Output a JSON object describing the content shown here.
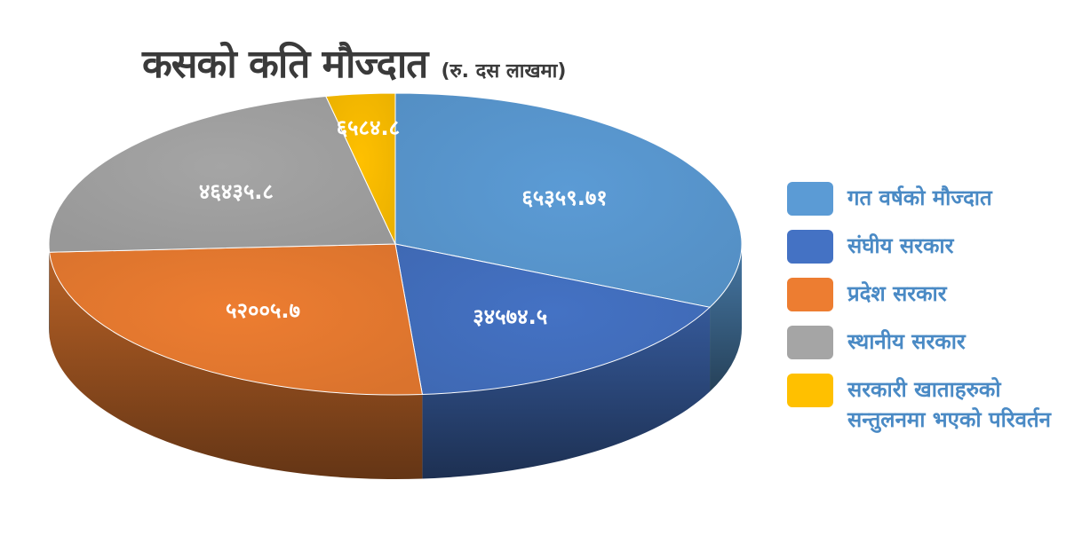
{
  "title": "कसको कति मौज्दात",
  "unit": "(रु. दस लाखमा)",
  "chart_data": {
    "type": "pie",
    "title": "कसको कति मौज्दात",
    "subtitle": "(रु. दस लाखमा)",
    "legend_position": "right",
    "series": [
      {
        "name": "गत वर्षको मौज्दात",
        "value": 65359.71,
        "label": "६५३५९.७१",
        "color": "#5B9BD5"
      },
      {
        "name": "संघीय सरकार",
        "value": 34574.5,
        "label": "३४५७४.५",
        "color": "#4472C4"
      },
      {
        "name": "प्रदेश सरकार",
        "value": 52005.7,
        "label": "५२००५.७",
        "color": "#ED7D31"
      },
      {
        "name": "स्थानीय सरकार",
        "value": 46435.8,
        "label": "४६४३५.८",
        "color": "#A5A5A5"
      },
      {
        "name": "सरकारी खाताहरुको सन्तुलनमा भएको परिवर्तन",
        "value": 6584.8,
        "label": "६५८४.८",
        "color": "#FFC000"
      }
    ]
  }
}
